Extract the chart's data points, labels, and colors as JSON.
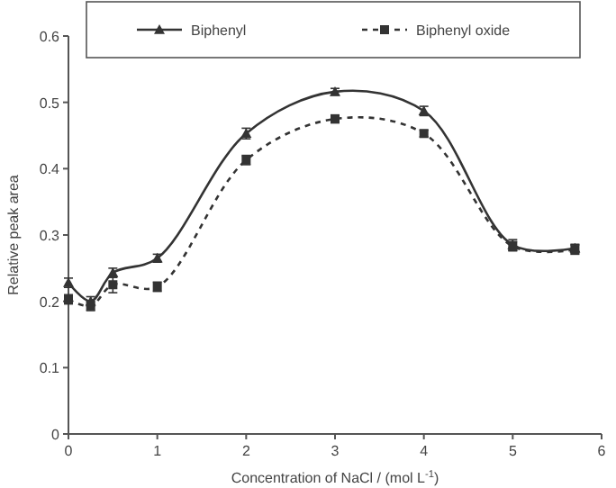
{
  "chart_data": {
    "type": "line",
    "xlabel": "Concentration of NaCl / (mol L$^{-1}$)",
    "ylabel": "Relative peak area",
    "x": [
      0,
      0.25,
      0.5,
      1,
      2,
      3,
      4,
      5,
      5.7
    ],
    "series": [
      {
        "name": "Biphenyl",
        "color": "#333333",
        "marker": "triangle",
        "line_style": "solid",
        "values": [
          0.228,
          0.2,
          0.243,
          0.265,
          0.453,
          0.516,
          0.487,
          0.285,
          0.28
        ],
        "errors": [
          0.007,
          0.007,
          0.007,
          0.006,
          0.008,
          0.005,
          0.007,
          0.008,
          0.006
        ]
      },
      {
        "name": "Biphenyl oxide",
        "color": "#333333",
        "marker": "square",
        "line_style": "dashed",
        "values": [
          0.203,
          0.193,
          0.225,
          0.222,
          0.413,
          0.475,
          0.453,
          0.283,
          0.278
        ],
        "errors": [
          0.007,
          0.007,
          0.012,
          0.007,
          0.007,
          0.006,
          0.005,
          0.007,
          0.007
        ]
      }
    ],
    "xlim": [
      0,
      6
    ],
    "xticks": [
      0,
      1,
      2,
      3,
      4,
      5,
      6
    ],
    "ylim": [
      0,
      0.6
    ],
    "yticks": [
      0,
      0.1,
      0.2,
      0.3,
      0.4,
      0.5,
      0.6
    ],
    "grid": false,
    "legend": "top"
  }
}
